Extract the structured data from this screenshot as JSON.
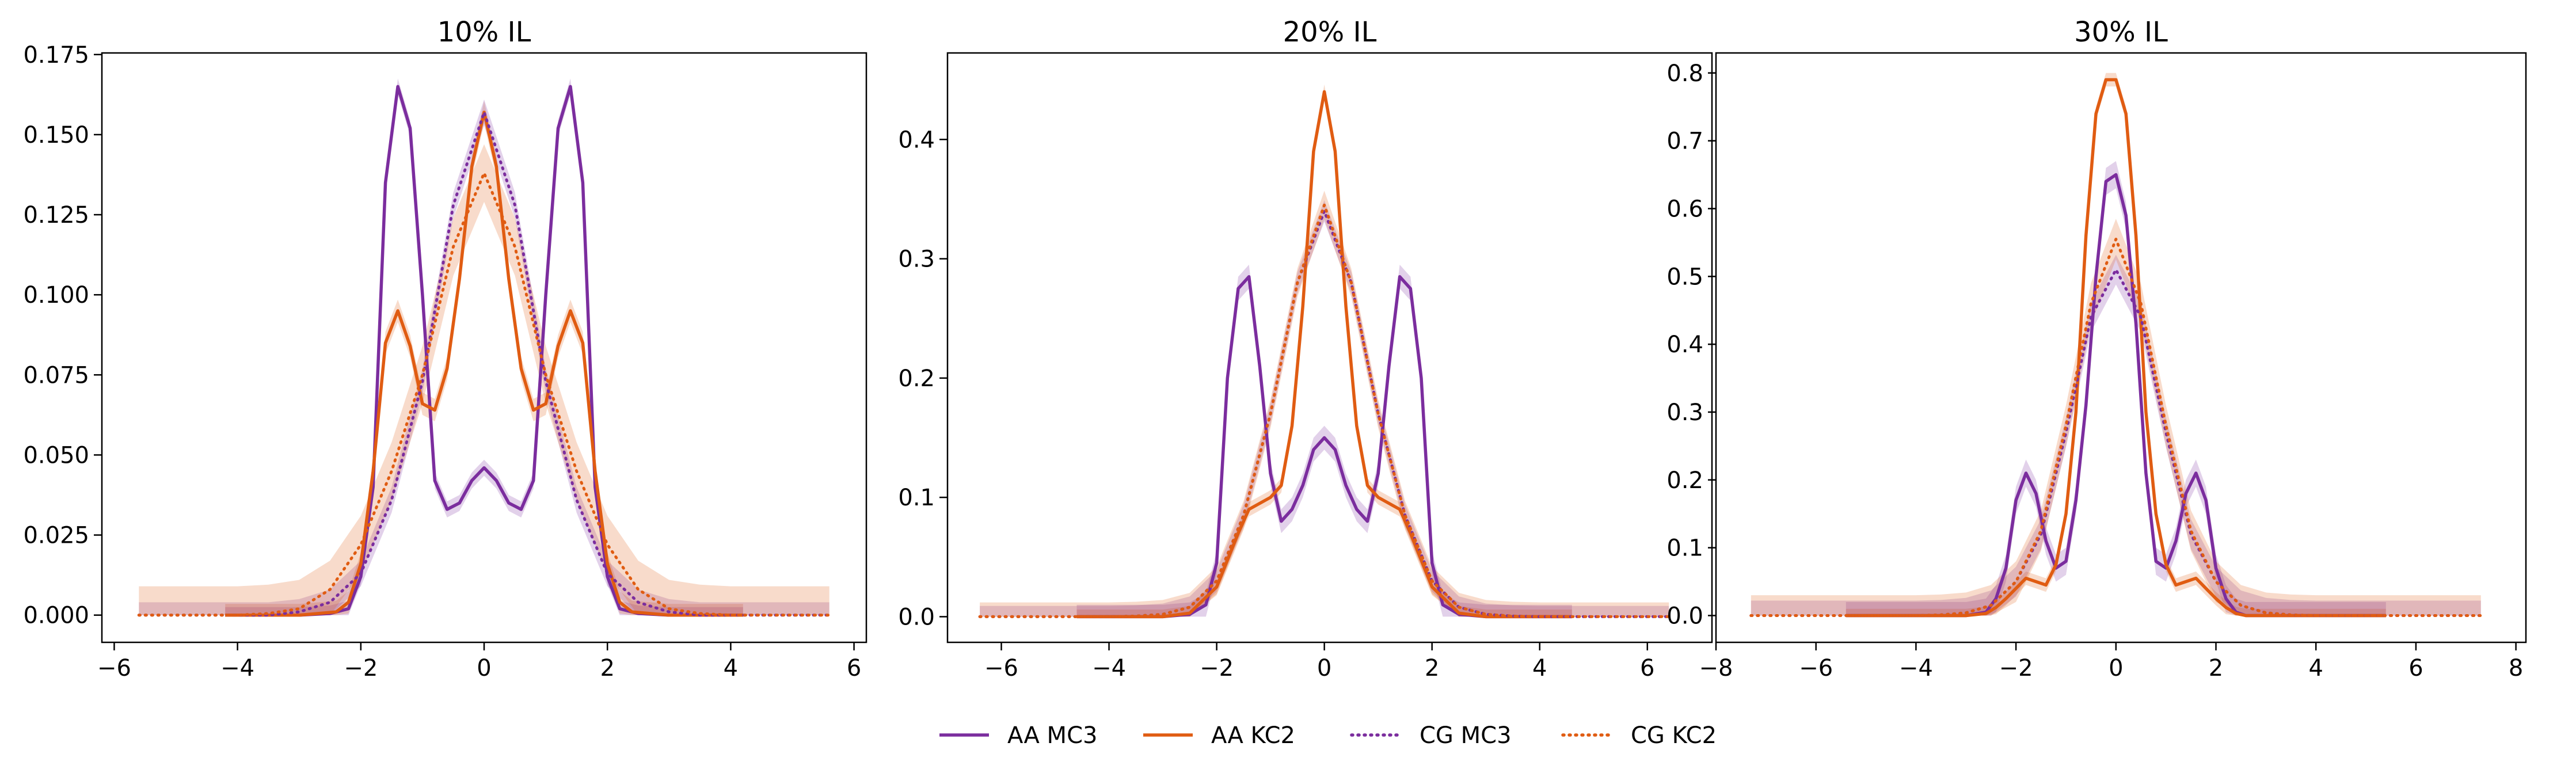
{
  "chart_data": [
    {
      "type": "line",
      "title": "10% IL",
      "xlim": [
        -6.2,
        6.2
      ],
      "ylim": [
        -0.0085,
        0.1755
      ],
      "xticks": [
        -6,
        -4,
        -2,
        0,
        2,
        4,
        6
      ],
      "xtick_labels": [
        "−6",
        "−4",
        "−2",
        "0",
        "2",
        "4",
        "6"
      ],
      "yticks": [
        0.0,
        0.025,
        0.05,
        0.075,
        0.1,
        0.125,
        0.15,
        0.175
      ],
      "ytick_labels": [
        "0.000",
        "0.025",
        "0.050",
        "0.075",
        "0.100",
        "0.125",
        "0.150",
        "0.175"
      ],
      "series": [
        {
          "name": "AA MC3",
          "color": "#7b2d9e",
          "style": "solid",
          "x": [
            -4.2,
            -3.0,
            -2.5,
            -2.2,
            -2.0,
            -1.8,
            -1.6,
            -1.4,
            -1.2,
            -1.0,
            -0.8,
            -0.6,
            -0.4,
            -0.2,
            0.0,
            0.2,
            0.4,
            0.6,
            0.8,
            1.0,
            1.2,
            1.4,
            1.6,
            1.8,
            2.0,
            2.2,
            2.5,
            3.0,
            4.2
          ],
          "y": [
            0.0,
            0.0,
            0.0005,
            0.002,
            0.012,
            0.04,
            0.135,
            0.165,
            0.152,
            0.1,
            0.042,
            0.033,
            0.035,
            0.042,
            0.046,
            0.042,
            0.035,
            0.033,
            0.042,
            0.1,
            0.152,
            0.165,
            0.135,
            0.04,
            0.012,
            0.002,
            0.0005,
            0.0,
            0.0
          ],
          "band": 0.0025
        },
        {
          "name": "AA KC2",
          "color": "#e05c12",
          "style": "solid",
          "x": [
            -4.2,
            -3.0,
            -2.4,
            -2.2,
            -2.0,
            -1.8,
            -1.6,
            -1.4,
            -1.2,
            -1.0,
            -0.8,
            -0.6,
            -0.4,
            -0.2,
            0.0,
            0.2,
            0.4,
            0.6,
            0.8,
            1.0,
            1.2,
            1.4,
            1.6,
            1.8,
            2.0,
            2.2,
            2.4,
            3.0,
            4.2
          ],
          "y": [
            0.0,
            0.0,
            0.001,
            0.004,
            0.016,
            0.045,
            0.085,
            0.095,
            0.084,
            0.066,
            0.064,
            0.077,
            0.105,
            0.14,
            0.157,
            0.14,
            0.105,
            0.077,
            0.064,
            0.066,
            0.084,
            0.095,
            0.085,
            0.045,
            0.016,
            0.004,
            0.001,
            0.0,
            0.0
          ],
          "band": 0.0035
        },
        {
          "name": "CG MC3",
          "color": "#7b2d9e",
          "style": "dotted",
          "x": [
            -5.6,
            -4.0,
            -3.5,
            -3.0,
            -2.5,
            -2.0,
            -1.5,
            -1.0,
            -0.5,
            0.0,
            0.5,
            1.0,
            1.5,
            2.0,
            2.5,
            3.0,
            3.5,
            4.0,
            5.6
          ],
          "y": [
            0.0,
            0.0,
            0.0,
            0.001,
            0.004,
            0.013,
            0.036,
            0.073,
            0.128,
            0.157,
            0.128,
            0.073,
            0.036,
            0.013,
            0.004,
            0.001,
            0.0,
            0.0,
            0.0
          ],
          "band": 0.004
        },
        {
          "name": "CG KC2",
          "color": "#e05c12",
          "style": "dotted",
          "x": [
            -5.6,
            -4.0,
            -3.5,
            -3.0,
            -2.5,
            -2.0,
            -1.5,
            -1.0,
            -0.5,
            0.0,
            0.5,
            1.0,
            1.5,
            2.0,
            2.5,
            3.0,
            3.5,
            4.0,
            5.6
          ],
          "y": [
            0.0,
            0.0,
            0.0005,
            0.002,
            0.008,
            0.022,
            0.045,
            0.075,
            0.115,
            0.138,
            0.115,
            0.075,
            0.045,
            0.022,
            0.008,
            0.002,
            0.0005,
            0.0,
            0.0
          ],
          "band": 0.009
        }
      ]
    },
    {
      "type": "line",
      "title": "20% IL",
      "xlim": [
        -7.0,
        7.2
      ],
      "ylim": [
        -0.0215,
        0.4725
      ],
      "xticks": [
        -6,
        -4,
        -2,
        0,
        2,
        4,
        6
      ],
      "xtick_labels": [
        "−6",
        "−4",
        "−2",
        "0",
        "2",
        "4",
        "6"
      ],
      "yticks": [
        0.0,
        0.1,
        0.2,
        0.3,
        0.4
      ],
      "ytick_labels": [
        "0.0",
        "0.1",
        "0.2",
        "0.3",
        "0.4"
      ],
      "series": [
        {
          "name": "AA MC3",
          "color": "#7b2d9e",
          "style": "solid",
          "x": [
            -4.6,
            -3.0,
            -2.5,
            -2.2,
            -2.0,
            -1.8,
            -1.6,
            -1.4,
            -1.2,
            -1.0,
            -0.8,
            -0.6,
            -0.4,
            -0.2,
            0.0,
            0.2,
            0.4,
            0.6,
            0.8,
            1.0,
            1.2,
            1.4,
            1.6,
            1.8,
            2.0,
            2.2,
            2.5,
            3.0,
            4.6
          ],
          "y": [
            0.0,
            0.0,
            0.002,
            0.01,
            0.045,
            0.2,
            0.275,
            0.285,
            0.21,
            0.12,
            0.08,
            0.09,
            0.11,
            0.14,
            0.15,
            0.14,
            0.11,
            0.09,
            0.08,
            0.12,
            0.21,
            0.285,
            0.275,
            0.2,
            0.045,
            0.01,
            0.002,
            0.0,
            0.0
          ],
          "band": 0.01
        },
        {
          "name": "AA KC2",
          "color": "#e05c12",
          "style": "solid",
          "x": [
            -4.6,
            -3.0,
            -2.5,
            -2.0,
            -1.6,
            -1.4,
            -1.2,
            -1.0,
            -0.8,
            -0.6,
            -0.4,
            -0.2,
            0.0,
            0.2,
            0.4,
            0.6,
            0.8,
            1.0,
            1.2,
            1.4,
            1.6,
            2.0,
            2.5,
            3.0,
            4.6
          ],
          "y": [
            0.0,
            0.0,
            0.003,
            0.025,
            0.07,
            0.09,
            0.095,
            0.1,
            0.11,
            0.16,
            0.26,
            0.39,
            0.44,
            0.39,
            0.26,
            0.16,
            0.11,
            0.1,
            0.095,
            0.09,
            0.07,
            0.025,
            0.003,
            0.0,
            0.0
          ],
          "band": 0.006
        },
        {
          "name": "CG MC3",
          "color": "#7b2d9e",
          "style": "dotted",
          "x": [
            -6.4,
            -4.0,
            -3.5,
            -3.0,
            -2.5,
            -2.0,
            -1.5,
            -1.0,
            -0.5,
            0.0,
            0.5,
            1.0,
            1.5,
            2.0,
            2.5,
            3.0,
            3.5,
            4.0,
            6.4
          ],
          "y": [
            0.0,
            0.0,
            0.0005,
            0.002,
            0.008,
            0.03,
            0.085,
            0.17,
            0.28,
            0.34,
            0.28,
            0.17,
            0.085,
            0.03,
            0.008,
            0.002,
            0.0005,
            0.0,
            0.0
          ],
          "band": 0.009
        },
        {
          "name": "CG KC2",
          "color": "#e05c12",
          "style": "dotted",
          "x": [
            -6.4,
            -4.0,
            -3.5,
            -3.0,
            -2.5,
            -2.0,
            -1.5,
            -1.0,
            -0.5,
            0.0,
            0.5,
            1.0,
            1.5,
            2.0,
            2.5,
            3.0,
            3.5,
            4.0,
            6.4
          ],
          "y": [
            0.0,
            0.0,
            0.0005,
            0.002,
            0.008,
            0.03,
            0.085,
            0.17,
            0.28,
            0.345,
            0.28,
            0.17,
            0.085,
            0.03,
            0.008,
            0.002,
            0.0005,
            0.0,
            0.0
          ],
          "band": 0.012
        }
      ]
    },
    {
      "type": "line",
      "title": "30% IL",
      "xlim": [
        -8.0,
        8.2
      ],
      "ylim": [
        -0.0395,
        0.8295
      ],
      "xticks": [
        -8,
        -6,
        -4,
        -2,
        0,
        2,
        4,
        6,
        8
      ],
      "xtick_labels": [
        "−8",
        "−6",
        "−4",
        "−2",
        "0",
        "2",
        "4",
        "6",
        "8"
      ],
      "yticks": [
        0.0,
        0.1,
        0.2,
        0.3,
        0.4,
        0.5,
        0.6,
        0.7,
        0.8
      ],
      "ytick_labels": [
        "0.0",
        "0.1",
        "0.2",
        "0.3",
        "0.4",
        "0.5",
        "0.6",
        "0.7",
        "0.8"
      ],
      "series": [
        {
          "name": "AA MC3",
          "color": "#7b2d9e",
          "style": "solid",
          "x": [
            -5.4,
            -3.0,
            -2.6,
            -2.4,
            -2.2,
            -2.0,
            -1.8,
            -1.6,
            -1.4,
            -1.2,
            -1.0,
            -0.8,
            -0.6,
            -0.4,
            -0.2,
            0.0,
            0.2,
            0.4,
            0.6,
            0.8,
            1.0,
            1.2,
            1.4,
            1.6,
            1.8,
            2.0,
            2.2,
            2.4,
            2.6,
            3.0,
            5.4
          ],
          "y": [
            0.0,
            0.0,
            0.005,
            0.025,
            0.07,
            0.17,
            0.21,
            0.18,
            0.11,
            0.07,
            0.08,
            0.17,
            0.31,
            0.5,
            0.64,
            0.65,
            0.59,
            0.43,
            0.21,
            0.08,
            0.07,
            0.11,
            0.18,
            0.21,
            0.17,
            0.07,
            0.025,
            0.005,
            0.0,
            0.0,
            0.0
          ],
          "band": 0.02
        },
        {
          "name": "AA KC2",
          "color": "#e05c12",
          "style": "solid",
          "x": [
            -5.4,
            -3.0,
            -2.6,
            -2.4,
            -2.2,
            -2.0,
            -1.8,
            -1.6,
            -1.4,
            -1.2,
            -1.0,
            -0.8,
            -0.6,
            -0.4,
            -0.2,
            0.0,
            0.2,
            0.4,
            0.6,
            0.8,
            1.0,
            1.2,
            1.4,
            1.6,
            1.8,
            2.0,
            2.2,
            2.4,
            2.6,
            3.0,
            5.4
          ],
          "y": [
            0.0,
            0.0,
            0.003,
            0.012,
            0.025,
            0.04,
            0.055,
            0.05,
            0.045,
            0.075,
            0.15,
            0.3,
            0.56,
            0.74,
            0.79,
            0.79,
            0.74,
            0.56,
            0.3,
            0.15,
            0.075,
            0.045,
            0.05,
            0.055,
            0.04,
            0.025,
            0.012,
            0.003,
            0.0,
            0.0,
            0.0
          ],
          "band": 0.01
        },
        {
          "name": "CG MC3",
          "color": "#7b2d9e",
          "style": "dotted",
          "x": [
            -7.3,
            -4.0,
            -3.5,
            -3.0,
            -2.5,
            -2.0,
            -1.5,
            -1.0,
            -0.5,
            0.0,
            0.5,
            1.0,
            1.5,
            2.0,
            2.5,
            3.0,
            3.5,
            4.0,
            7.3
          ],
          "y": [
            0.0,
            0.0,
            0.001,
            0.004,
            0.015,
            0.05,
            0.12,
            0.27,
            0.44,
            0.51,
            0.44,
            0.27,
            0.12,
            0.05,
            0.015,
            0.004,
            0.001,
            0.0,
            0.0
          ],
          "band": 0.022
        },
        {
          "name": "CG KC2",
          "color": "#e05c12",
          "style": "dotted",
          "x": [
            -7.3,
            -4.0,
            -3.5,
            -3.0,
            -2.5,
            -2.0,
            -1.5,
            -1.0,
            -0.5,
            0.0,
            0.5,
            1.0,
            1.5,
            2.0,
            2.5,
            3.0,
            3.5,
            4.0,
            7.3
          ],
          "y": [
            0.0,
            0.0,
            0.001,
            0.004,
            0.015,
            0.05,
            0.125,
            0.28,
            0.46,
            0.555,
            0.46,
            0.28,
            0.125,
            0.05,
            0.015,
            0.004,
            0.001,
            0.0,
            0.0
          ],
          "band": 0.03
        }
      ]
    }
  ],
  "legend": {
    "placement": "bottom-center",
    "entries": [
      {
        "label": "AA MC3",
        "color": "#7b2d9e",
        "style": "solid"
      },
      {
        "label": "AA KC2",
        "color": "#e05c12",
        "style": "solid"
      },
      {
        "label": "CG MC3",
        "color": "#7b2d9e",
        "style": "dotted"
      },
      {
        "label": "CG KC2",
        "color": "#e05c12",
        "style": "dotted"
      }
    ]
  }
}
